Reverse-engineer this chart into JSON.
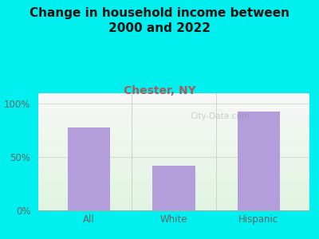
{
  "title": "Change in household income between\n2000 and 2022",
  "subtitle": "Chester, NY",
  "categories": [
    "All",
    "White",
    "Hispanic"
  ],
  "values": [
    78,
    42,
    93
  ],
  "bar_color": "#b39ddb",
  "title_fontsize": 11,
  "subtitle_fontsize": 10,
  "subtitle_color": "#a06060",
  "tick_label_color": "#666666",
  "ytick_labels": [
    "0%",
    "50%",
    "100%"
  ],
  "ytick_values": [
    0,
    50,
    100
  ],
  "ylim": [
    0,
    110
  ],
  "background_color": "#00f0f0",
  "watermark": "City-Data.com"
}
